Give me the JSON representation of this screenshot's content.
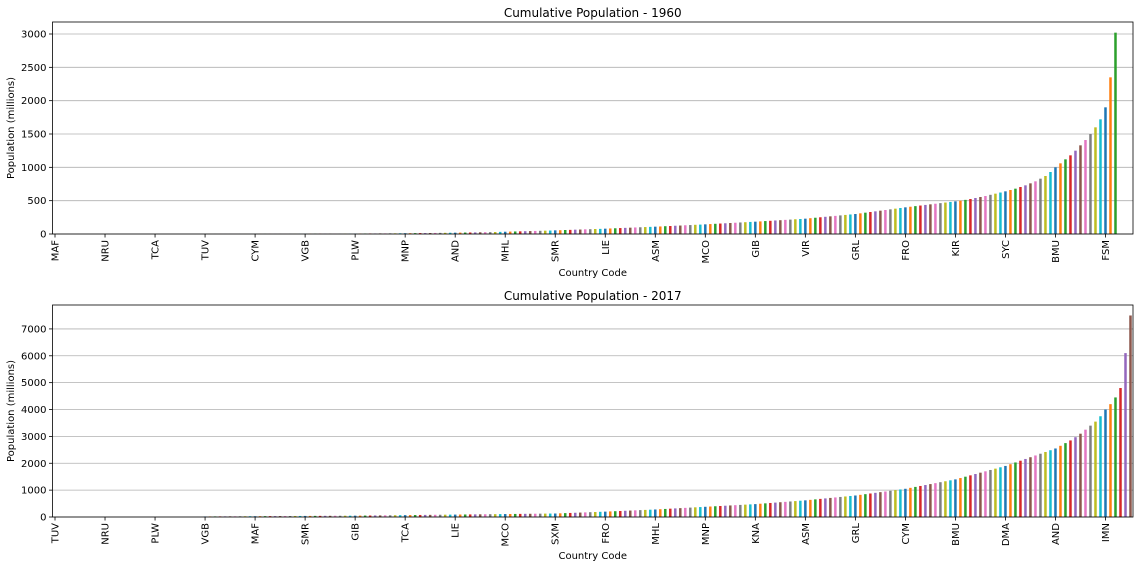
{
  "chart_data": [
    {
      "type": "bar",
      "title": "Cumulative Population - 1960",
      "x_label": "Country Code",
      "y_label": "Population (millions)",
      "categories": [
        "MAF",
        null,
        null,
        null,
        null,
        null,
        null,
        null,
        null,
        null,
        "NRU",
        null,
        null,
        null,
        null,
        null,
        null,
        null,
        null,
        null,
        "TCA",
        null,
        null,
        null,
        null,
        null,
        null,
        null,
        null,
        null,
        "TUV",
        null,
        null,
        null,
        null,
        null,
        null,
        null,
        null,
        null,
        "CYM",
        null,
        null,
        null,
        null,
        null,
        null,
        null,
        null,
        null,
        "VGB",
        null,
        null,
        null,
        null,
        null,
        null,
        null,
        null,
        null,
        "PLW",
        null,
        null,
        null,
        null,
        null,
        null,
        null,
        null,
        null,
        "MNP",
        null,
        null,
        null,
        null,
        null,
        null,
        null,
        null,
        null,
        "AND",
        null,
        null,
        null,
        null,
        null,
        null,
        null,
        null,
        null,
        "MHL",
        null,
        null,
        null,
        null,
        null,
        null,
        null,
        null,
        null,
        "SMR",
        null,
        null,
        null,
        null,
        null,
        null,
        null,
        null,
        null,
        "LIE",
        null,
        null,
        null,
        null,
        null,
        null,
        null,
        null,
        null,
        "ASM",
        null,
        null,
        null,
        null,
        null,
        null,
        null,
        null,
        null,
        "MCO",
        null,
        null,
        null,
        null,
        null,
        null,
        null,
        null,
        null,
        "GIB",
        null,
        null,
        null,
        null,
        null,
        null,
        null,
        null,
        null,
        "VIR",
        null,
        null,
        null,
        null,
        null,
        null,
        null,
        null,
        null,
        "GRL",
        null,
        null,
        null,
        null,
        null,
        null,
        null,
        null,
        null,
        "FRO",
        null,
        null,
        null,
        null,
        null,
        null,
        null,
        null,
        null,
        "KIR",
        null,
        null,
        null,
        null,
        null,
        null,
        null,
        null,
        null,
        "SYC",
        null,
        null,
        null,
        null,
        null,
        null,
        null,
        null,
        null,
        "BMU",
        null,
        null,
        null,
        null,
        null,
        null,
        null,
        null,
        null,
        "FSM",
        null,
        null,
        null,
        null,
        null
      ],
      "values": [
        0,
        0,
        0,
        0,
        0,
        0,
        0,
        0,
        0,
        0,
        0,
        0,
        0,
        0,
        0,
        0,
        0,
        0,
        0,
        0,
        0,
        0,
        0,
        0,
        0,
        0,
        0,
        0,
        0,
        0,
        1,
        1,
        1,
        1,
        1,
        1,
        1,
        1,
        1,
        1,
        2,
        2,
        2,
        2,
        2,
        2,
        2,
        2,
        2,
        2,
        4,
        4,
        4,
        4,
        4,
        4,
        4,
        4,
        4,
        4,
        6,
        7,
        7,
        8,
        8,
        9,
        9,
        10,
        10,
        11,
        12,
        12,
        13,
        14,
        14,
        15,
        16,
        17,
        18,
        19,
        20,
        21,
        22,
        23,
        24,
        26,
        27,
        28,
        30,
        32,
        34,
        36,
        38,
        40,
        42,
        44,
        46,
        48,
        50,
        52,
        55,
        57,
        60,
        62,
        65,
        67,
        70,
        72,
        75,
        77,
        80,
        83,
        86,
        89,
        92,
        95,
        98,
        101,
        104,
        107,
        110,
        113,
        117,
        120,
        124,
        127,
        131,
        134,
        138,
        141,
        145,
        149,
        153,
        157,
        161,
        165,
        169,
        173,
        177,
        181,
        185,
        189,
        194,
        198,
        203,
        207,
        212,
        216,
        221,
        225,
        230,
        237,
        244,
        251,
        258,
        265,
        272,
        279,
        286,
        293,
        300,
        310,
        320,
        330,
        340,
        350,
        360,
        370,
        380,
        390,
        400,
        409,
        418,
        427,
        436,
        445,
        454,
        463,
        472,
        481,
        490,
        500,
        512,
        525,
        540,
        555,
        570,
        588,
        605,
        622,
        640,
        660,
        680,
        705,
        730,
        760,
        790,
        830,
        870,
        930,
        1000,
        1060,
        1120,
        1180,
        1250,
        1330,
        1410,
        1500,
        1600,
        1720,
        1900,
        2350,
        3020,
        null,
        null,
        null
      ],
      "colors": [
        "#1f77b4",
        "#ff7f0e",
        "#2ca02c",
        "#d62728",
        "#9467bd",
        "#8c564b",
        "#e377c2",
        "#7f7f7f",
        "#bcbd22",
        "#17becf"
      ],
      "ylim": [
        0,
        3180
      ],
      "yticks": [
        0,
        500,
        1000,
        1500,
        2000,
        2500,
        3000
      ],
      "grid": true
    },
    {
      "type": "bar",
      "title": "Cumulative Population - 2017",
      "x_label": "Country Code",
      "y_label": "Population (millions)",
      "categories": [
        "TUV",
        null,
        null,
        null,
        null,
        null,
        null,
        null,
        null,
        null,
        "NRU",
        null,
        null,
        null,
        null,
        null,
        null,
        null,
        null,
        null,
        "PLW",
        null,
        null,
        null,
        null,
        null,
        null,
        null,
        null,
        null,
        "VGB",
        null,
        null,
        null,
        null,
        null,
        null,
        null,
        null,
        null,
        "MAF",
        null,
        null,
        null,
        null,
        null,
        null,
        null,
        null,
        null,
        "SMR",
        null,
        null,
        null,
        null,
        null,
        null,
        null,
        null,
        null,
        "GIB",
        null,
        null,
        null,
        null,
        null,
        null,
        null,
        null,
        null,
        "TCA",
        null,
        null,
        null,
        null,
        null,
        null,
        null,
        null,
        null,
        "LIE",
        null,
        null,
        null,
        null,
        null,
        null,
        null,
        null,
        null,
        "MCO",
        null,
        null,
        null,
        null,
        null,
        null,
        null,
        null,
        null,
        "SXM",
        null,
        null,
        null,
        null,
        null,
        null,
        null,
        null,
        null,
        "FRO",
        null,
        null,
        null,
        null,
        null,
        null,
        null,
        null,
        null,
        "MHL",
        null,
        null,
        null,
        null,
        null,
        null,
        null,
        null,
        null,
        "MNP",
        null,
        null,
        null,
        null,
        null,
        null,
        null,
        null,
        null,
        "KNA",
        null,
        null,
        null,
        null,
        null,
        null,
        null,
        null,
        null,
        "ASM",
        null,
        null,
        null,
        null,
        null,
        null,
        null,
        null,
        null,
        "GRL",
        null,
        null,
        null,
        null,
        null,
        null,
        null,
        null,
        null,
        "CYM",
        null,
        null,
        null,
        null,
        null,
        null,
        null,
        null,
        null,
        "BMU",
        null,
        null,
        null,
        null,
        null,
        null,
        null,
        null,
        null,
        "DMA",
        null,
        null,
        null,
        null,
        null,
        null,
        null,
        null,
        null,
        "AND",
        null,
        null,
        null,
        null,
        null,
        null,
        null,
        null,
        null,
        "IMN",
        null,
        null,
        null,
        null,
        null
      ],
      "values": [
        0,
        0,
        0,
        0,
        0,
        0,
        0,
        0,
        0,
        0,
        0,
        0,
        0,
        0,
        0,
        0,
        0,
        0,
        0,
        0,
        0,
        0,
        0,
        0,
        0,
        0,
        0,
        0,
        0,
        0,
        20,
        21,
        22,
        23,
        24,
        25,
        26,
        27,
        28,
        29,
        30,
        31,
        32,
        33,
        34,
        35,
        36,
        37,
        38,
        39,
        40,
        41,
        42,
        43,
        44,
        45,
        46,
        47,
        48,
        49,
        50,
        52,
        54,
        56,
        58,
        60,
        62,
        64,
        66,
        68,
        70,
        72,
        74,
        76,
        78,
        80,
        82,
        84,
        86,
        88,
        90,
        92,
        94,
        96,
        98,
        100,
        102,
        104,
        106,
        108,
        110,
        112,
        114,
        116,
        118,
        120,
        122,
        124,
        126,
        128,
        130,
        137,
        144,
        151,
        158,
        165,
        172,
        179,
        186,
        193,
        200,
        208,
        216,
        224,
        232,
        240,
        248,
        256,
        264,
        272,
        280,
        290,
        300,
        310,
        320,
        330,
        340,
        350,
        360,
        370,
        380,
        390,
        400,
        410,
        420,
        430,
        440,
        450,
        460,
        470,
        480,
        494,
        508,
        522,
        536,
        550,
        564,
        578,
        592,
        606,
        620,
        638,
        656,
        674,
        692,
        710,
        728,
        746,
        764,
        782,
        800,
        825,
        850,
        875,
        900,
        925,
        950,
        975,
        1000,
        1025,
        1050,
        1085,
        1120,
        1155,
        1190,
        1225,
        1260,
        1295,
        1330,
        1365,
        1400,
        1450,
        1500,
        1550,
        1600,
        1650,
        1700,
        1750,
        1800,
        1850,
        1900,
        1965,
        2030,
        2095,
        2160,
        2225,
        2290,
        2355,
        2420,
        2485,
        2550,
        2650,
        2750,
        2850,
        2970,
        3100,
        3250,
        3400,
        3550,
        3750,
        4000,
        4200,
        4450,
        4800,
        6100,
        7500
      ],
      "colors": [
        "#1f77b4",
        "#ff7f0e",
        "#2ca02c",
        "#d62728",
        "#9467bd",
        "#8c564b",
        "#e377c2",
        "#7f7f7f",
        "#bcbd22",
        "#17becf"
      ],
      "ylim": [
        0,
        7890
      ],
      "yticks": [
        0,
        1000,
        2000,
        3000,
        4000,
        5000,
        6000,
        7000
      ],
      "grid": true
    }
  ]
}
